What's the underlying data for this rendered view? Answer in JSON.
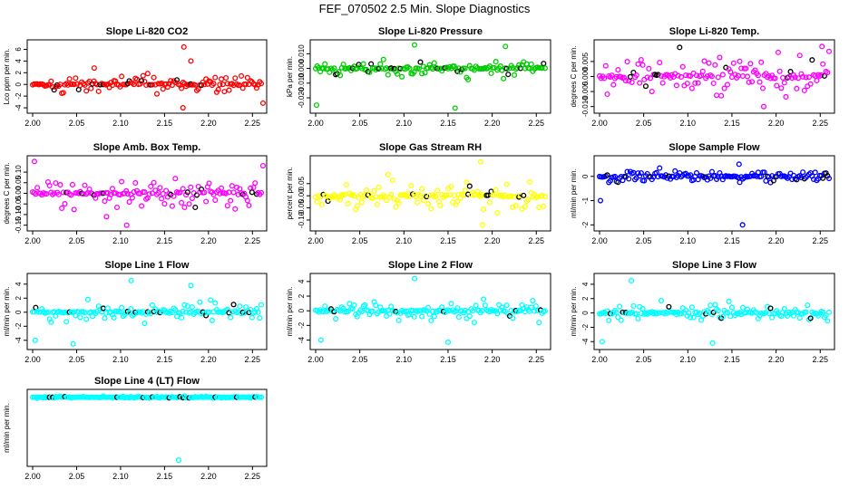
{
  "page_title": "FEF_070502  2.5 Min. Slope Diagnostics",
  "chart_data": [
    {
      "type": "scatter",
      "title": "Slope Li-820 CO2",
      "ylabel": "Lco ppm per min.",
      "color": "#ff0000",
      "xlim": [
        2.0,
        2.26
      ],
      "xticks": [
        2.0,
        2.05,
        2.1,
        2.15,
        2.2,
        2.25
      ],
      "xtick_labels": [
        "2.00",
        "2.05",
        "2.10",
        "2.15",
        "2.20",
        "2.25"
      ],
      "ylim": [
        -4.3,
        7.0
      ],
      "yticks": [
        -4,
        -2,
        0,
        2,
        4,
        6
      ],
      "ytick_labels": [
        "-4",
        "-2",
        "0",
        "2",
        "4",
        "6"
      ],
      "spread": 1.2,
      "outliers": [
        [
          2.172,
          6.4
        ],
        [
          2.171,
          -4.0
        ],
        [
          2.262,
          -3.2
        ],
        [
          2.07,
          2.8
        ],
        [
          2.18,
          4.0
        ]
      ],
      "seed": 11
    },
    {
      "type": "scatter",
      "title": "Slope Li-820 Pressure",
      "ylabel": "kPa per min.",
      "color": "#00cc00",
      "xlim": [
        2.0,
        2.26
      ],
      "xticks": [
        2.0,
        2.05,
        2.1,
        2.15,
        2.2,
        2.25
      ],
      "xtick_labels": [
        "2.00",
        "2.05",
        "2.10",
        "2.15",
        "2.20",
        "2.25"
      ],
      "ylim": [
        -0.028,
        0.017
      ],
      "yticks": [
        -0.02,
        -0.01,
        0.0,
        0.01
      ],
      "ytick_labels": [
        "-0.020",
        "-0.010",
        "0.000",
        "0.010"
      ],
      "spread": 0.004,
      "outliers": [
        [
          2.112,
          0.016
        ],
        [
          2.001,
          -0.025
        ],
        [
          2.158,
          -0.027
        ],
        [
          2.215,
          0.015
        ]
      ],
      "seed": 23
    },
    {
      "type": "scatter",
      "title": "Slope Li-820 Temp.",
      "ylabel": "degrees C per min.",
      "color": "#ff00ff",
      "xlim": [
        2.0,
        2.26
      ],
      "xticks": [
        2.0,
        2.05,
        2.1,
        2.15,
        2.2,
        2.25
      ],
      "xtick_labels": [
        "2.00",
        "2.05",
        "2.10",
        "2.15",
        "2.20",
        "2.25"
      ],
      "ylim": [
        -0.011,
        0.011
      ],
      "yticks": [
        -0.01,
        -0.005,
        0.0,
        0.005
      ],
      "ytick_labels": [
        "-0.010",
        "-0.005",
        "0.000",
        "0.005"
      ],
      "spread": 0.005,
      "outliers": [
        [
          2.252,
          0.01
        ],
        [
          2.186,
          -0.01
        ]
      ],
      "seed": 37
    },
    {
      "type": "scatter",
      "title": "Slope Amb. Box Temp.",
      "ylabel": "degrees C per min.",
      "color": "#ff00ff",
      "xlim": [
        2.0,
        2.26
      ],
      "xticks": [
        2.0,
        2.05,
        2.1,
        2.15,
        2.2,
        2.25
      ],
      "xtick_labels": [
        "2.00",
        "2.05",
        "2.10",
        "2.15",
        "2.20",
        "2.25"
      ],
      "ylim": [
        -0.16,
        0.16
      ],
      "yticks": [
        -0.15,
        -0.1,
        -0.05,
        0.0,
        0.05,
        0.1
      ],
      "ytick_labels": [
        "-0.15",
        "-0.10",
        "-0.05",
        "0.00",
        "0.05",
        "0.10"
      ],
      "spread": 0.05,
      "outliers": [
        [
          2.002,
          0.15
        ],
        [
          2.084,
          -0.11
        ],
        [
          2.107,
          -0.15
        ],
        [
          2.262,
          0.13
        ]
      ],
      "seed": 41
    },
    {
      "type": "scatter",
      "title": "Slope Gas Stream RH",
      "ylabel": "percent per min.",
      "color": "#ffff00",
      "xlim": [
        2.0,
        2.26
      ],
      "xticks": [
        2.0,
        2.05,
        2.1,
        2.15,
        2.2,
        2.25
      ],
      "xtick_labels": [
        "2.00",
        "2.05",
        "2.10",
        "2.15",
        "2.20",
        "2.25"
      ],
      "ylim": [
        -0.13,
        0.15
      ],
      "yticks": [
        -0.1,
        -0.05,
        0.0,
        0.05
      ],
      "ytick_labels": [
        "-0.10",
        "-0.05",
        "0.00",
        "0.05"
      ],
      "spread": 0.05,
      "outliers": [
        [
          2.187,
          0.14
        ],
        [
          2.189,
          -0.12
        ]
      ],
      "seed": 53
    },
    {
      "type": "scatter",
      "title": "Slope Sample Flow",
      "ylabel": "ml/min per min.",
      "color": "#0000ff",
      "xlim": [
        2.0,
        2.26
      ],
      "xticks": [
        2.0,
        2.05,
        2.1,
        2.15,
        2.2,
        2.25
      ],
      "xtick_labels": [
        "2.00",
        "2.05",
        "2.10",
        "2.15",
        "2.20",
        "2.25"
      ],
      "ylim": [
        -2.1,
        0.7
      ],
      "yticks": [
        -2,
        -1,
        0
      ],
      "ytick_labels": [
        "-2",
        "-1",
        "0"
      ],
      "spread": 0.2,
      "outliers": [
        [
          2.001,
          -1.0
        ],
        [
          2.162,
          -2.0
        ],
        [
          2.158,
          0.5
        ]
      ],
      "seed": 67
    },
    {
      "type": "scatter",
      "title": "Slope Line 1 Flow",
      "ylabel": "ml/min per min.",
      "color": "#00ffff",
      "xlim": [
        2.0,
        2.26
      ],
      "xticks": [
        2.0,
        2.05,
        2.1,
        2.15,
        2.2,
        2.25
      ],
      "xtick_labels": [
        "2.00",
        "2.05",
        "2.10",
        "2.15",
        "2.20",
        "2.25"
      ],
      "ylim": [
        -4.8,
        5.0
      ],
      "yticks": [
        -4,
        -2,
        0,
        2,
        4
      ],
      "ytick_labels": [
        "-4",
        "-2",
        "0",
        "2",
        "4"
      ],
      "spread": 1.0,
      "outliers": [
        [
          2.112,
          4.5
        ],
        [
          2.046,
          -4.5
        ],
        [
          2.003,
          -4.0
        ],
        [
          2.18,
          3.8
        ]
      ],
      "seed": 71
    },
    {
      "type": "scatter",
      "title": "Slope Line 2 Flow",
      "ylabel": "ml/min per min.",
      "color": "#00ffff",
      "xlim": [
        2.0,
        2.26
      ],
      "xticks": [
        2.0,
        2.05,
        2.1,
        2.15,
        2.2,
        2.25
      ],
      "xtick_labels": [
        "2.00",
        "2.05",
        "2.10",
        "2.15",
        "2.20",
        "2.25"
      ],
      "ylim": [
        -4.8,
        4.6
      ],
      "yticks": [
        -4,
        -2,
        0,
        2,
        4
      ],
      "ytick_labels": [
        "-4",
        "-2",
        "0",
        "2",
        "4"
      ],
      "spread": 1.0,
      "outliers": [
        [
          2.112,
          4.4
        ],
        [
          2.006,
          -4.0
        ],
        [
          2.15,
          -4.3
        ]
      ],
      "seed": 83
    },
    {
      "type": "scatter",
      "title": "Slope Line 3 Flow",
      "ylabel": "ml/min per min.",
      "color": "#00ffff",
      "xlim": [
        2.0,
        2.26
      ],
      "xticks": [
        2.0,
        2.05,
        2.1,
        2.15,
        2.2,
        2.25
      ],
      "xtick_labels": [
        "2.00",
        "2.05",
        "2.10",
        "2.15",
        "2.20",
        "2.25"
      ],
      "ylim": [
        -4.6,
        5.0
      ],
      "yticks": [
        -4,
        -2,
        0,
        2,
        4
      ],
      "ytick_labels": [
        "-4",
        "-2",
        "0",
        "2",
        "4"
      ],
      "spread": 1.0,
      "outliers": [
        [
          2.036,
          4.5
        ],
        [
          2.003,
          -4.0
        ],
        [
          2.128,
          -4.2
        ]
      ],
      "seed": 97
    },
    {
      "type": "scatter",
      "title": "Slope Line 4 (LT) Flow",
      "ylabel": "ml/min per min.",
      "color": "#00ffff",
      "xlim": [
        2.0,
        2.26
      ],
      "xticks": [
        2.0,
        2.05,
        2.1,
        2.15,
        2.2,
        2.25
      ],
      "xtick_labels": [
        "2.00",
        "2.05",
        "2.10",
        "2.15",
        "2.20",
        "2.25"
      ],
      "ylim": [
        -78,
        5
      ],
      "yticks": [],
      "ytick_labels": [],
      "spread": 0.8,
      "outliers": [
        [
          2.166,
          -75
        ]
      ],
      "seed": 101
    }
  ]
}
